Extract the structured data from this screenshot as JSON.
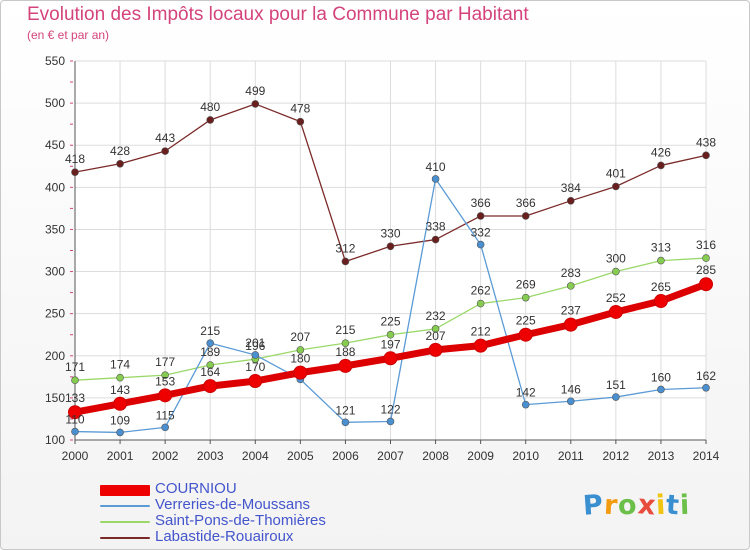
{
  "chart_data": {
    "type": "line",
    "title": "Evolution des Impôts locaux pour la Commune par Habitant",
    "subtitle": "(en € et par an)",
    "x": [
      "2000",
      "2001",
      "2002",
      "2003",
      "2004",
      "2005",
      "2006",
      "2007",
      "2008",
      "2009",
      "2010",
      "2011",
      "2012",
      "2013",
      "2014"
    ],
    "ylim": [
      100,
      550
    ],
    "yticks": [
      100,
      150,
      200,
      250,
      300,
      350,
      400,
      450,
      500,
      550
    ],
    "grid": true,
    "legend_position": "bottom-left",
    "series": [
      {
        "name": "COURNIOU",
        "color": "#ee0000",
        "values": [
          133,
          143,
          153,
          164,
          170,
          180,
          188,
          197,
          207,
          212,
          225,
          237,
          252,
          265,
          285
        ]
      },
      {
        "name": "Verreries-de-Moussans",
        "color": "#5b9bd5",
        "values": [
          110,
          109,
          115,
          215,
          201,
          172,
          121,
          122,
          410,
          332,
          142,
          146,
          151,
          160,
          162
        ]
      },
      {
        "name": "Saint-Pons-de-Thomières",
        "color": "#9bd86a",
        "values": [
          171,
          174,
          177,
          189,
          196,
          207,
          215,
          225,
          232,
          262,
          269,
          283,
          300,
          313,
          316
        ]
      },
      {
        "name": "Labastide-Rouairoux",
        "color": "#7b2a2a",
        "values": [
          418,
          428,
          443,
          480,
          499,
          478,
          312,
          330,
          338,
          366,
          366,
          384,
          401,
          426,
          438
        ]
      }
    ],
    "data_labels": {
      "COURNIOU": [
        "133",
        "143",
        "153",
        "164",
        "170",
        "180",
        "188",
        "197",
        "207",
        "212",
        "225",
        "237",
        "252",
        "265",
        "285"
      ],
      "Verreries-de-Moussans": [
        "110",
        "109",
        "115",
        "215",
        "201",
        "",
        "121",
        "122",
        "410",
        "332",
        "142",
        "146",
        "151",
        "160",
        "162"
      ],
      "Saint-Pons-de-Thomières": [
        "171",
        "174",
        "177",
        "189",
        "196",
        "207",
        "215",
        "225",
        "232",
        "262",
        "269",
        "283",
        "300",
        "313",
        "316"
      ],
      "Labastide-Rouairoux": [
        "418",
        "428",
        "443",
        "480",
        "499",
        "478",
        "312",
        "330",
        "338",
        "366",
        "366",
        "384",
        "401",
        "426",
        "438"
      ]
    }
  },
  "logo": {
    "letters": [
      "P",
      "r",
      "o",
      "x",
      "i",
      "t",
      "i"
    ],
    "colors": [
      "#3a8fd0",
      "#f39c12",
      "#6cc04a",
      "#e74c3c",
      "#f1c40f",
      "#3a8fd0",
      "#6cc04a"
    ]
  }
}
